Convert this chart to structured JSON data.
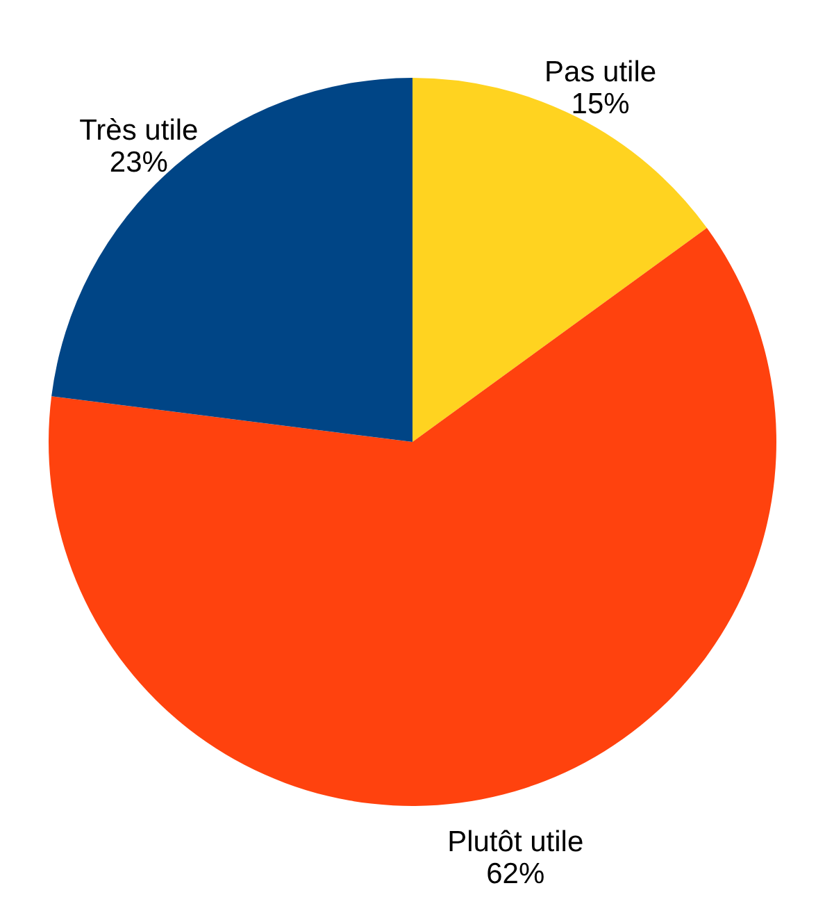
{
  "chart_data": {
    "type": "pie",
    "categories": [
      "Pas utile",
      "Plutôt utile",
      "Très utile"
    ],
    "values": [
      15,
      62,
      23
    ],
    "colors": [
      "#ffd320",
      "#ff420e",
      "#004586"
    ],
    "value_labels": [
      "15%",
      "62%",
      "23%"
    ]
  }
}
